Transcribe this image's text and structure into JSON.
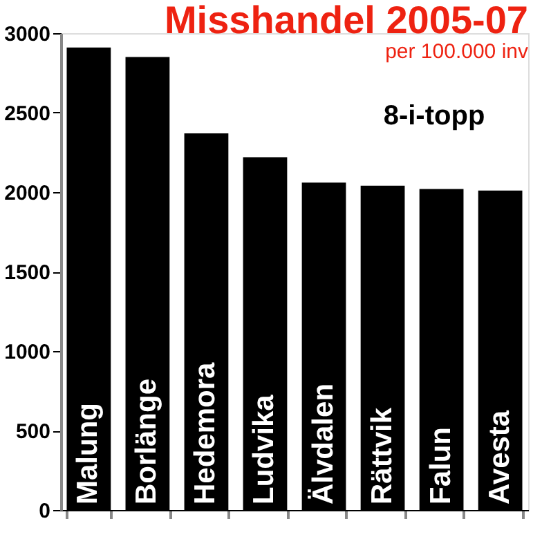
{
  "chart_data": {
    "type": "bar",
    "title": "Misshandel 2005-07",
    "subtitle": "per 100.000 inv",
    "annotations": [
      "8-i-topp"
    ],
    "categories": [
      "Malung",
      "Borlänge",
      "Hedemora",
      "Ludvika",
      "Älvdalen",
      "Rättvik",
      "Falun",
      "Avesta"
    ],
    "values": [
      2910,
      2850,
      2370,
      2220,
      2060,
      2040,
      2020,
      2010
    ],
    "color": "#000000",
    "ylim": [
      0,
      3000
    ],
    "yticks": [
      0,
      500,
      1000,
      1500,
      2000,
      2500,
      3000
    ],
    "grid": false
  }
}
